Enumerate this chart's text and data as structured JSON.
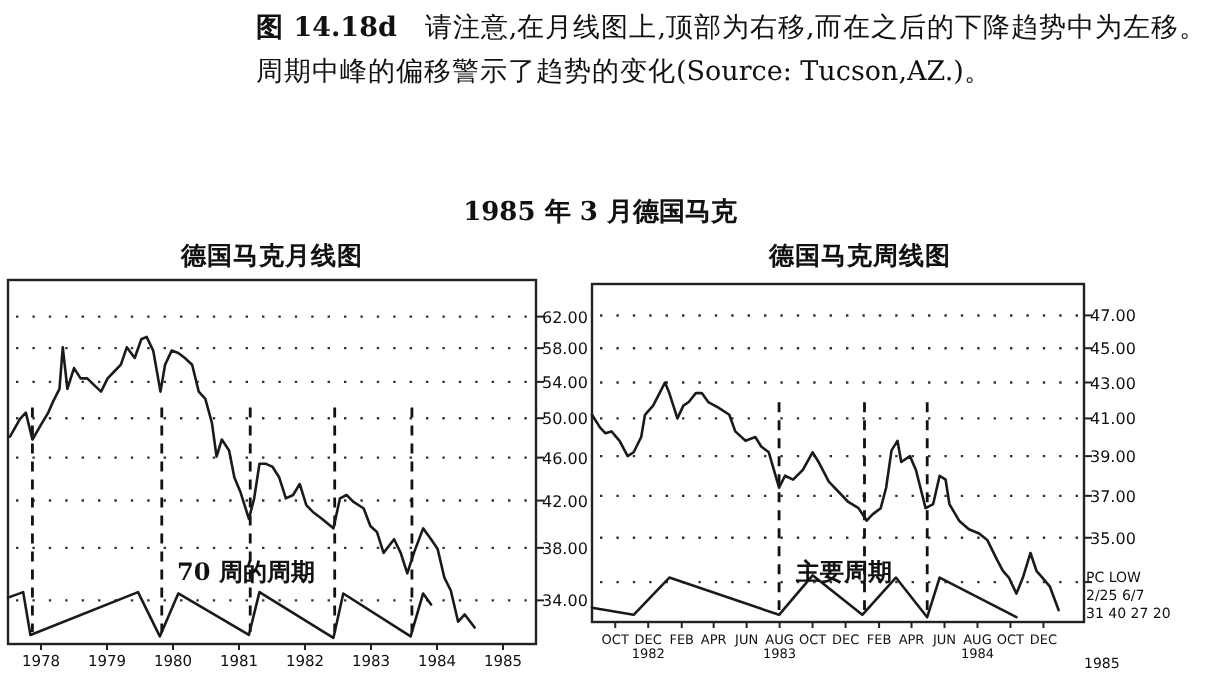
{
  "chart_data": [
    {
      "type": "line",
      "title": "德国马克月线图",
      "annotations": [
        "**图 14.18d**　请注意,在月线图上,顶部为右移,而在之后的下降趋势中为左移。周期中峰的偏移警示了趋势的变化(Source: Tucson,AZ.)。",
        "1985 年 3 月德国马克",
        "70 周的周期"
      ],
      "log": "y",
      "grid": "y",
      "xlim": [
        1978,
        1986
      ],
      "ylim": [
        31,
        67
      ],
      "xticks": [
        {
          "value": 1978.5,
          "label": "1978"
        },
        {
          "value": 1979.5,
          "label": "1979"
        },
        {
          "value": 1980.5,
          "label": "1980"
        },
        {
          "value": 1981.5,
          "label": "1981"
        },
        {
          "value": 1982.5,
          "label": "1982"
        },
        {
          "value": 1983.5,
          "label": "1983"
        },
        {
          "value": 1984.5,
          "label": "1984"
        },
        {
          "value": 1985.5,
          "label": "1985"
        }
      ],
      "yticks": [
        {
          "value": 34,
          "label": "34.00"
        },
        {
          "value": 38,
          "label": "38.00"
        },
        {
          "value": 42,
          "label": "42.00"
        },
        {
          "value": 46,
          "label": "46.00"
        },
        {
          "value": 50,
          "label": "50.00"
        },
        {
          "value": 54,
          "label": "54.00"
        },
        {
          "value": 58,
          "label": "58.00"
        },
        {
          "value": 62,
          "label": "62.00"
        }
      ],
      "ref_lines": [
        {
          "axis": "x",
          "value": 1978.37,
          "line_style": "dashed"
        },
        {
          "axis": "x",
          "value": 1980.33,
          "line_style": "dashed"
        },
        {
          "axis": "x",
          "value": 1981.67,
          "line_style": "dashed"
        },
        {
          "axis": "x",
          "value": 1982.95,
          "line_style": "dashed"
        },
        {
          "axis": "x",
          "value": 1984.12,
          "line_style": "dashed"
        }
      ],
      "series": [
        {
          "color": "#1a1a1a",
          "x": [
            1978.03,
            1978.18,
            1978.27,
            1978.37,
            1978.49,
            1978.61,
            1978.69,
            1978.78,
            1978.83,
            1978.9,
            1979.0,
            1979.1,
            1979.2,
            1979.31,
            1979.41,
            1979.51,
            1979.61,
            1979.71,
            1979.8,
            1979.92,
            1980.02,
            1980.1,
            1980.2,
            1980.31,
            1980.38,
            1980.48,
            1980.58,
            1980.68,
            1980.79,
            1980.89,
            1980.99,
            1981.09,
            1981.16,
            1981.24,
            1981.35,
            1981.43,
            1981.52,
            1981.65,
            1981.73,
            1981.81,
            1981.91,
            1982.01,
            1982.11,
            1982.21,
            1982.32,
            1982.42,
            1982.52,
            1982.62,
            1982.76,
            1982.93,
            1983.03,
            1983.13,
            1983.23,
            1983.39,
            1983.49,
            1983.59,
            1983.69,
            1983.85,
            1983.95,
            1984.05,
            1984.15,
            1984.29,
            1984.41,
            1984.51,
            1984.61,
            1984.71,
            1984.82,
            1984.92,
            1985.07
          ],
          "values": [
            48.1,
            49.9,
            50.6,
            47.8,
            49.2,
            50.6,
            51.9,
            53.2,
            58.1,
            53.2,
            55.6,
            54.4,
            54.4,
            53.6,
            52.9,
            54.4,
            55.2,
            56.0,
            58.1,
            56.8,
            59.1,
            59.4,
            57.7,
            52.9,
            56.0,
            57.7,
            57.4,
            56.8,
            56.0,
            52.9,
            52.1,
            49.5,
            46.1,
            47.8,
            46.7,
            44.1,
            42.8,
            40.4,
            42.2,
            45.4,
            45.4,
            45.1,
            44.1,
            42.2,
            42.5,
            43.5,
            41.6,
            41.0,
            40.4,
            39.6,
            42.2,
            42.5,
            41.9,
            41.3,
            39.8,
            39.3,
            37.6,
            38.7,
            37.6,
            36.0,
            37.6,
            39.6,
            38.7,
            37.9,
            35.7,
            34.7,
            32.5,
            33.0,
            32.1
          ]
        },
        {
          "color": "#1a1a1a",
          "x": [
            1978.0,
            1978.23,
            1978.34,
            1979.97,
            1980.3,
            1980.58,
            1981.65,
            1981.81,
            1982.93,
            1983.08,
            1984.1,
            1984.29,
            1984.41
          ],
          "values": [
            34.2,
            34.6,
            31.6,
            34.6,
            31.5,
            34.5,
            31.6,
            34.6,
            31.4,
            34.5,
            31.5,
            34.5,
            33.7
          ]
        }
      ]
    },
    {
      "type": "line",
      "title": "德国马克周线图",
      "annotations": [
        "主要周期",
        "PC LOW",
        "2/25 6/7",
        "31 40 27   20",
        "1985"
      ],
      "log": "y",
      "grid": "y",
      "xlim": [
        "1982-09-02",
        "1985-02-28"
      ],
      "ylim": [
        31.3,
        49
      ],
      "xticks": [
        {
          "value": "1982-10-15",
          "label": "OCT"
        },
        {
          "value": "1982-12-15",
          "label": "DEC\n1982"
        },
        {
          "value": "1983-02-15",
          "label": "FEB"
        },
        {
          "value": "1983-04-15",
          "label": "APR"
        },
        {
          "value": "1983-06-15",
          "label": "JUN"
        },
        {
          "value": "1983-08-15",
          "label": "AUG\n1983"
        },
        {
          "value": "1983-10-15",
          "label": "OCT"
        },
        {
          "value": "1983-12-15",
          "label": "DEC"
        },
        {
          "value": "1984-02-15",
          "label": "FEB"
        },
        {
          "value": "1984-04-15",
          "label": "APR"
        },
        {
          "value": "1984-06-15",
          "label": "JUN"
        },
        {
          "value": "1984-08-15",
          "label": "AUG\n1984"
        },
        {
          "value": "1984-10-15",
          "label": "OCT"
        },
        {
          "value": "1984-12-15",
          "label": "DEC"
        }
      ],
      "yticks": [
        {
          "value": 33,
          "label": null
        },
        {
          "value": 35,
          "label": "35.00"
        },
        {
          "value": 37,
          "label": "37.00"
        },
        {
          "value": 39,
          "label": "39.00"
        },
        {
          "value": 41,
          "label": "41.00"
        },
        {
          "value": 43,
          "label": "43.00"
        },
        {
          "value": 45,
          "label": "45.00"
        },
        {
          "value": 47,
          "label": "47.00"
        }
      ],
      "ref_lines": [
        {
          "axis": "x",
          "value": "1983-08-14",
          "line_style": "dashed"
        },
        {
          "axis": "x",
          "value": "1984-01-19",
          "line_style": "dashed"
        },
        {
          "axis": "x",
          "value": "1984-05-14",
          "line_style": "dashed"
        }
      ],
      "series": [
        {
          "color": "#1a1a1a",
          "x": [
            "1982-09-02",
            "1982-09-17",
            "1982-09-27",
            "1982-10-08",
            "1982-10-23",
            "1982-11-07",
            "1982-11-18",
            "1982-12-02",
            "1982-12-09",
            "1982-12-24",
            "1983-01-05",
            "1983-01-15",
            "1983-01-23",
            "1983-02-07",
            "1983-02-18",
            "1983-02-28",
            "1983-03-13",
            "1983-03-24",
            "1983-04-05",
            "1983-04-23",
            "1983-05-14",
            "1983-05-25",
            "1983-06-13",
            "1983-07-01",
            "1983-07-12",
            "1983-07-26",
            "1983-08-14",
            "1983-08-25",
            "1983-09-09",
            "1983-09-27",
            "1983-10-15",
            "1983-10-26",
            "1983-11-14",
            "1983-12-02",
            "1983-12-20",
            "1984-01-08",
            "1984-01-23",
            "1984-02-03",
            "1984-02-18",
            "1984-02-28",
            "1984-03-09",
            "1984-03-20",
            "1984-03-27",
            "1984-04-12",
            "1984-04-23",
            "1984-05-11",
            "1984-05-25",
            "1984-06-06",
            "1984-06-17",
            "1984-06-24",
            "1984-07-12",
            "1984-07-30",
            "1984-08-18",
            "1984-09-02",
            "1984-09-20",
            "1984-10-01",
            "1984-10-12",
            "1984-10-26",
            "1984-11-07",
            "1984-11-21",
            "1984-12-02",
            "1984-12-13",
            "1984-12-27",
            "1985-01-12"
          ],
          "values": [
            41.2,
            40.5,
            40.2,
            40.3,
            39.8,
            39.0,
            39.2,
            40.0,
            41.2,
            41.7,
            42.4,
            43.0,
            42.4,
            41.0,
            41.7,
            41.9,
            42.4,
            42.4,
            41.9,
            41.6,
            41.2,
            40.3,
            39.8,
            40.0,
            39.5,
            39.2,
            37.4,
            38.0,
            37.8,
            38.3,
            39.2,
            38.7,
            37.7,
            37.2,
            36.7,
            36.4,
            35.8,
            36.1,
            36.4,
            37.4,
            39.3,
            39.8,
            38.7,
            39.0,
            38.3,
            36.4,
            36.6,
            38.0,
            37.8,
            36.6,
            35.8,
            35.4,
            35.2,
            34.9,
            34.0,
            33.5,
            33.2,
            32.5,
            33.2,
            34.3,
            33.5,
            33.2,
            32.8,
            31.8
          ]
        },
        {
          "color": "#1a1a1a",
          "x": [
            "1982-09-02",
            "1982-11-18",
            "1983-01-23",
            "1983-08-14",
            "1983-10-15",
            "1984-01-15",
            "1984-03-17",
            "1984-05-14",
            "1984-06-06",
            "1984-10-26"
          ],
          "values": [
            31.9,
            31.6,
            33.2,
            31.6,
            33.3,
            31.6,
            33.2,
            31.5,
            33.2,
            31.5
          ]
        }
      ]
    }
  ]
}
